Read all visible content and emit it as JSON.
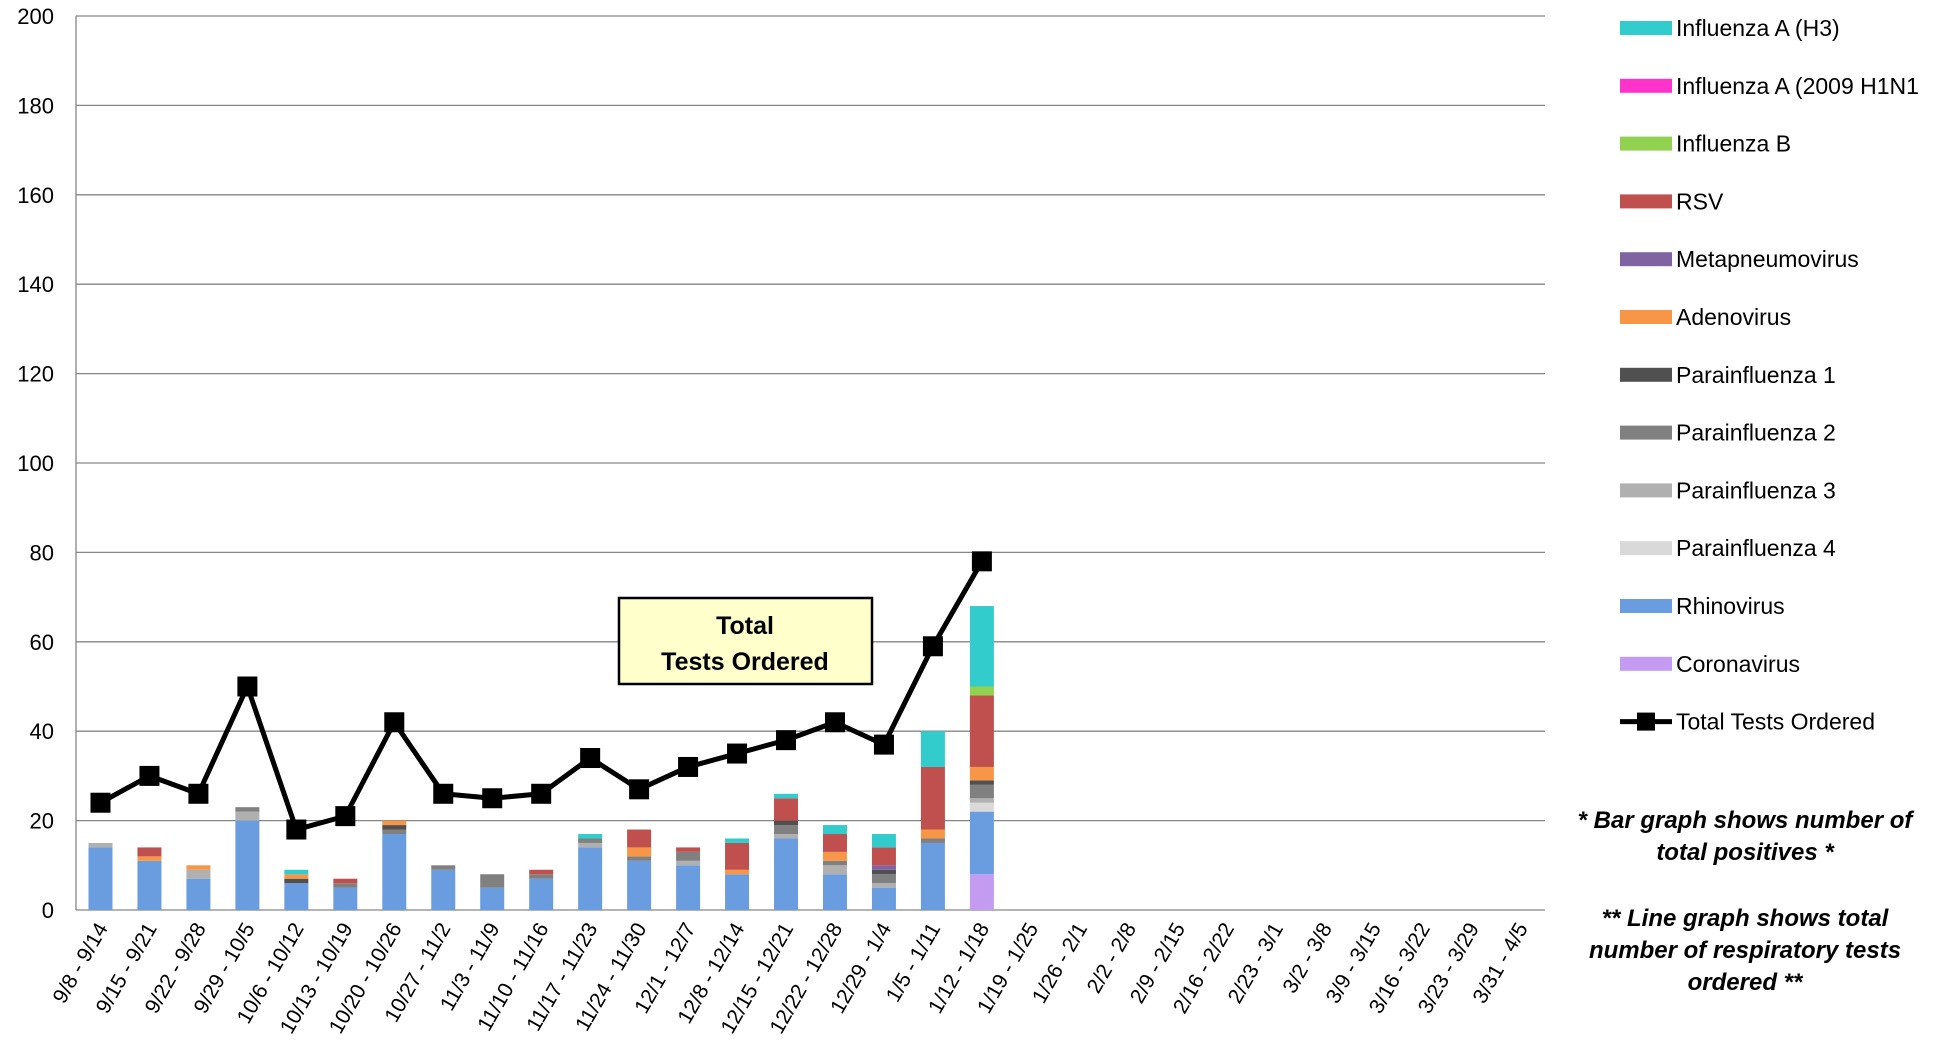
{
  "chart_data": {
    "type": "bar",
    "stacked": true,
    "ylim": [
      0,
      200
    ],
    "yticks": [
      0,
      20,
      40,
      60,
      80,
      100,
      120,
      140,
      160,
      180,
      200
    ],
    "grid": true,
    "legend_position": "right",
    "categories": [
      "9/8 - 9/14",
      "9/15 - 9/21",
      "9/22 - 9/28",
      "9/29 - 10/5",
      "10/6 - 10/12",
      "10/13 - 10/19",
      "10/20 - 10/26",
      "10/27 - 11/2",
      "11/3 - 11/9",
      "11/10 - 11/16",
      "11/17 - 11/23",
      "11/24 - 11/30",
      "12/1 - 12/7",
      "12/8 - 12/14",
      "12/15 - 12/21",
      "12/22 - 12/28",
      "12/29 - 1/4",
      "1/5 - 1/11",
      "1/12 - 1/18",
      "1/19 - 1/25",
      "1/26 - 2/1",
      "2/2 - 2/8",
      "2/9 - 2/15",
      "2/16 - 2/22",
      "2/23 - 3/1",
      "3/2 - 3/8",
      "3/9 - 3/15",
      "3/16 - 3/22",
      "3/23 - 3/29",
      "3/31 - 4/5"
    ],
    "series": [
      {
        "name": "Coronavirus",
        "color": "#c39bf0",
        "values": [
          0,
          0,
          0,
          0,
          0,
          0,
          0,
          0,
          0,
          0,
          0,
          0,
          0,
          0,
          0,
          0,
          0,
          0,
          8,
          null,
          null,
          null,
          null,
          null,
          null,
          null,
          null,
          null,
          null,
          null
        ]
      },
      {
        "name": "Rhinovirus",
        "color": "#6a9de0",
        "values": [
          14,
          11,
          7,
          20,
          6,
          5,
          17,
          9,
          5,
          7,
          14,
          11,
          10,
          8,
          16,
          8,
          5,
          15,
          14,
          null,
          null,
          null,
          null,
          null,
          null,
          null,
          null,
          null,
          null,
          null
        ]
      },
      {
        "name": "Parainfluenza 4",
        "color": "#d9d9d9",
        "values": [
          0,
          0,
          0,
          0,
          0,
          0,
          0,
          0,
          0,
          0,
          0,
          0,
          0,
          0,
          0,
          0,
          0,
          0,
          2,
          null,
          null,
          null,
          null,
          null,
          null,
          null,
          null,
          null,
          null,
          null
        ]
      },
      {
        "name": "Parainfluenza 3",
        "color": "#b0b0b0",
        "values": [
          1,
          0,
          2,
          2,
          0,
          0,
          0,
          0,
          0,
          0,
          1,
          0,
          1,
          0,
          1,
          2,
          1,
          0,
          1,
          null,
          null,
          null,
          null,
          null,
          null,
          null,
          null,
          null,
          null,
          null
        ]
      },
      {
        "name": "Parainfluenza 2",
        "color": "#808080",
        "values": [
          0,
          0,
          0,
          1,
          0,
          1,
          1,
          1,
          3,
          1,
          1,
          1,
          2,
          0,
          2,
          1,
          2,
          1,
          3,
          null,
          null,
          null,
          null,
          null,
          null,
          null,
          null,
          null,
          null,
          null
        ]
      },
      {
        "name": "Parainfluenza 1",
        "color": "#505050",
        "values": [
          0,
          0,
          0,
          0,
          1,
          0,
          1,
          0,
          0,
          0,
          0,
          0,
          0,
          0,
          1,
          0,
          1,
          0,
          1,
          null,
          null,
          null,
          null,
          null,
          null,
          null,
          null,
          null,
          null,
          null
        ]
      },
      {
        "name": "Adenovirus",
        "color": "#f79646",
        "values": [
          0,
          1,
          1,
          0,
          1,
          0,
          1,
          0,
          0,
          0,
          0,
          2,
          0,
          1,
          0,
          2,
          0,
          2,
          3,
          null,
          null,
          null,
          null,
          null,
          null,
          null,
          null,
          null,
          null,
          null
        ]
      },
      {
        "name": "Metapneumovirus",
        "color": "#8064a2",
        "values": [
          0,
          0,
          0,
          0,
          0,
          0,
          0,
          0,
          0,
          0,
          0,
          0,
          0,
          0,
          0,
          0,
          1,
          0,
          0,
          null,
          null,
          null,
          null,
          null,
          null,
          null,
          null,
          null,
          null,
          null
        ]
      },
      {
        "name": "RSV",
        "color": "#c0504d",
        "values": [
          0,
          2,
          0,
          0,
          0,
          1,
          0,
          0,
          0,
          1,
          0,
          4,
          1,
          6,
          5,
          4,
          4,
          14,
          16,
          null,
          null,
          null,
          null,
          null,
          null,
          null,
          null,
          null,
          null,
          null
        ]
      },
      {
        "name": "Influenza B",
        "color": "#92d050",
        "values": [
          0,
          0,
          0,
          0,
          0,
          0,
          0,
          0,
          0,
          0,
          0,
          0,
          0,
          0,
          0,
          0,
          0,
          0,
          2,
          null,
          null,
          null,
          null,
          null,
          null,
          null,
          null,
          null,
          null,
          null
        ]
      },
      {
        "name": "Influenza A (2009 H1N1",
        "color": "#ff33cc",
        "values": [
          0,
          0,
          0,
          0,
          0,
          0,
          0,
          0,
          0,
          0,
          0,
          0,
          0,
          0,
          0,
          0,
          0,
          0,
          0,
          null,
          null,
          null,
          null,
          null,
          null,
          null,
          null,
          null,
          null,
          null
        ]
      },
      {
        "name": "Influenza A (H3)",
        "color": "#33cccc",
        "values": [
          0,
          0,
          0,
          0,
          1,
          0,
          0,
          0,
          0,
          0,
          1,
          0,
          0,
          1,
          1,
          2,
          3,
          8,
          18,
          null,
          null,
          null,
          null,
          null,
          null,
          null,
          null,
          null,
          null,
          null
        ]
      }
    ],
    "line": {
      "name": "Total Tests Ordered",
      "color": "#000000",
      "values": [
        24,
        30,
        26,
        50,
        18,
        21,
        42,
        26,
        25,
        26,
        34,
        27,
        32,
        35,
        38,
        42,
        37,
        59,
        78,
        null,
        null,
        null,
        null,
        null,
        null,
        null,
        null,
        null,
        null,
        null
      ]
    },
    "legend_order": [
      "Influenza A (H3)",
      "Influenza A (2009 H1N1",
      "Influenza B",
      "RSV",
      "Metapneumovirus",
      "Adenovirus",
      "Parainfluenza 1",
      "Parainfluenza 2",
      "Parainfluenza 3",
      "Parainfluenza 4",
      "Rhinovirus",
      "Coronavirus",
      "Total Tests Ordered"
    ],
    "annotation": {
      "line1": "Total",
      "line2": "Tests Ordered"
    },
    "notes": [
      [
        "* Bar graph shows number of",
        "total positives *"
      ],
      [
        "** Line graph shows total",
        "number of respiratory tests",
        "ordered **"
      ]
    ]
  }
}
